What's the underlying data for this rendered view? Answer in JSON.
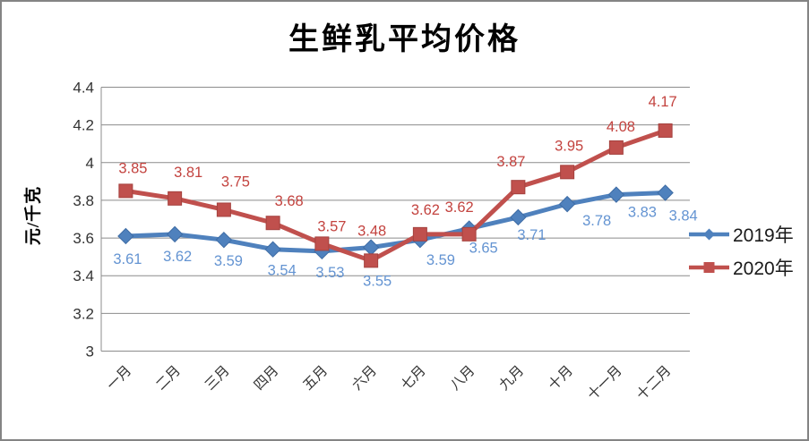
{
  "window": {
    "background": "#FFFFFF",
    "frame_color": "#848484"
  },
  "chart_data": {
    "type": "line",
    "title": "生鲜乳平均价格",
    "xlabel": "",
    "ylabel": "元/千克",
    "categories": [
      "一月",
      "二月",
      "三月",
      "四月",
      "五月",
      "六月",
      "七月",
      "八月",
      "九月",
      "十月",
      "十一月",
      "十二月"
    ],
    "series": [
      {
        "name": "2019年",
        "marker": "diamond",
        "color": "#4F81BD",
        "label_color": "#6494D2",
        "values": [
          3.61,
          3.62,
          3.59,
          3.54,
          3.53,
          3.55,
          3.59,
          3.65,
          3.71,
          3.78,
          3.83,
          3.84
        ]
      },
      {
        "name": "2020年",
        "marker": "square",
        "color": "#C0504D",
        "label_color": "#C3433F",
        "values": [
          3.85,
          3.81,
          3.75,
          3.68,
          3.57,
          3.48,
          3.62,
          3.62,
          3.87,
          3.95,
          4.08,
          4.17
        ]
      }
    ],
    "ylim": [
      3,
      4.4
    ],
    "ytick_labels": [
      "3",
      "3.2",
      "3.4",
      "3.6",
      "3.8",
      "4",
      "4.2",
      "4.4"
    ],
    "ytick_values": [
      3,
      3.2,
      3.4,
      3.6,
      3.8,
      4,
      4.2,
      4.4
    ],
    "grid": true,
    "data_labels": true,
    "legend_position": "middle-right",
    "gridline_color": "#8C8C8C",
    "axis_text_color": "#333333"
  }
}
